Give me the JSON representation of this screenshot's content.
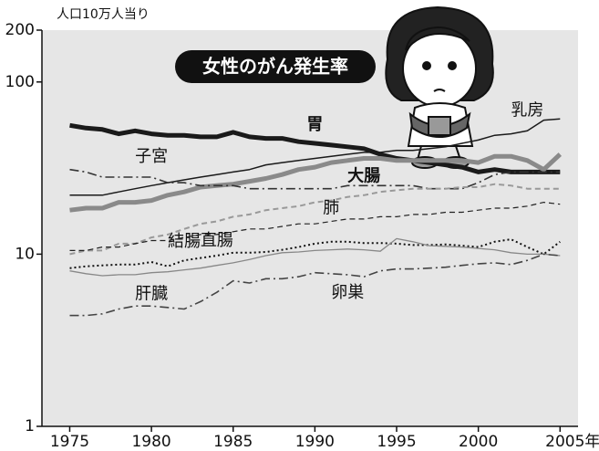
{
  "chart_data": {
    "type": "line",
    "title": "女性のがん発生率",
    "y_label": "人口10万人当り",
    "x": [
      1975,
      1976,
      1977,
      1978,
      1979,
      1980,
      1981,
      1982,
      1983,
      1984,
      1985,
      1986,
      1987,
      1988,
      1989,
      1990,
      1991,
      1992,
      1993,
      1994,
      1995,
      1996,
      1997,
      1998,
      1999,
      2000,
      2001,
      2002,
      2003,
      2004,
      2005
    ],
    "xlim": [
      1973.3,
      2006.1
    ],
    "xticks": [
      1975,
      1980,
      1985,
      1990,
      1995,
      2000,
      {
        "value": 2005,
        "label": "2005年"
      }
    ],
    "ylim": [
      1,
      200
    ],
    "yticks": [
      1,
      10,
      100,
      200
    ],
    "log_scale": true,
    "series": [
      {
        "name": "胃",
        "color": "#1a1a1a",
        "values": [
          56,
          54,
          53,
          50,
          52,
          50,
          49,
          49,
          48,
          48,
          51,
          48,
          47,
          47,
          45,
          44,
          43,
          42,
          41,
          38,
          36,
          35,
          34,
          33,
          32,
          30,
          31,
          30,
          30,
          30,
          30
        ]
      },
      {
        "name": "乳房",
        "color": "#1a1a1a",
        "values": [
          22,
          22,
          22,
          23,
          24,
          25,
          26,
          27,
          28,
          29,
          30,
          31,
          33,
          34,
          35,
          36,
          37,
          38,
          39,
          39,
          40,
          40,
          41,
          42,
          44,
          46,
          49,
          50,
          52,
          60,
          61
        ]
      },
      {
        "name": "大腸",
        "color": "#8a8a8a",
        "values": [
          18,
          18.5,
          18.5,
          20,
          20,
          20.5,
          22,
          23,
          24.5,
          25,
          25.5,
          26.5,
          27.5,
          29,
          31,
          32,
          34,
          35,
          36,
          36,
          35,
          35,
          35,
          35,
          35,
          34,
          37,
          37,
          35,
          31,
          38
        ]
      },
      {
        "name": "子宮",
        "color": "#333333",
        "values": [
          31,
          30,
          28,
          28,
          28,
          28,
          26,
          26,
          25,
          25,
          25,
          24,
          24,
          24,
          24,
          24,
          24,
          25,
          25,
          25,
          25,
          25,
          24,
          24,
          24,
          26,
          29,
          30,
          30,
          30,
          30
        ]
      },
      {
        "name": "結腸",
        "color": "#999999",
        "values": [
          10,
          10.5,
          10.5,
          11.5,
          11.5,
          12.5,
          13,
          14,
          15,
          15.5,
          16.5,
          17,
          18,
          18.5,
          19,
          20,
          20.5,
          21.5,
          22,
          23,
          23.5,
          24,
          24,
          24,
          24.5,
          24.5,
          25.5,
          25,
          24,
          24,
          24
        ]
      },
      {
        "name": "肺",
        "color": "#222222",
        "values": [
          10.5,
          10.5,
          11,
          11,
          11.5,
          12,
          12,
          12.5,
          13,
          13,
          13.5,
          14,
          14,
          14.5,
          15,
          15,
          15.5,
          16,
          16,
          16.5,
          16.5,
          17,
          17,
          17.5,
          17.5,
          18,
          18.5,
          18.5,
          19,
          20,
          19.5
        ]
      },
      {
        "name": "直腸",
        "color": "#111111",
        "values": [
          8.3,
          8.5,
          8.6,
          8.7,
          8.7,
          9,
          8.5,
          9.2,
          9.5,
          9.8,
          10.2,
          10.2,
          10.3,
          10.6,
          11,
          11.5,
          11.8,
          11.8,
          11.6,
          11.6,
          11.5,
          11.3,
          11.3,
          11.4,
          11.2,
          11,
          11.8,
          12.2,
          11,
          10,
          11.8
        ]
      },
      {
        "name": "肝臓",
        "color": "#888888",
        "values": [
          8,
          7.7,
          7.5,
          7.6,
          7.6,
          7.8,
          7.9,
          8.1,
          8.3,
          8.6,
          8.9,
          9.3,
          9.8,
          10.2,
          10.3,
          10.5,
          10.6,
          10.7,
          10.6,
          10.4,
          12.3,
          11.8,
          11.2,
          11.1,
          11,
          10.8,
          10.6,
          10.2,
          10,
          10,
          9.8
        ]
      },
      {
        "name": "卵巣",
        "color": "#444444",
        "values": [
          4.4,
          4.4,
          4.5,
          4.8,
          5,
          5,
          4.9,
          4.8,
          5.3,
          6,
          7,
          6.8,
          7.2,
          7.2,
          7.4,
          7.8,
          7.7,
          7.6,
          7.4,
          8,
          8.2,
          8.2,
          8.3,
          8.4,
          8.6,
          8.8,
          8.9,
          8.7,
          9.2,
          10,
          9.8
        ]
      }
    ]
  }
}
